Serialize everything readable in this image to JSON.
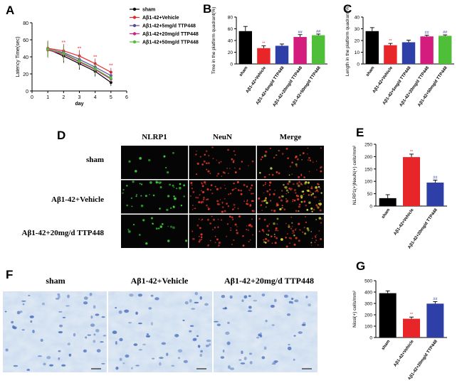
{
  "panels": {
    "A": "A",
    "B": "B",
    "C": "C",
    "D": "D",
    "E": "E",
    "F": "F",
    "G": "G"
  },
  "colors": {
    "sham": "#000000",
    "vehicle": "#e8262a",
    "ttp5": "#5b4a9c",
    "ttp20": "#d41c7e",
    "ttp50": "#4fbf3a",
    "blue_bar": "#2f3fa8"
  },
  "chart_data": [
    {
      "id": "A",
      "type": "line",
      "title": "",
      "xlabel": "day",
      "ylabel": "Latency Time(sec)",
      "xlim": [
        0,
        6
      ],
      "ylim": [
        0,
        80
      ],
      "xticks": [
        "0",
        "1",
        "2",
        "3",
        "4",
        "5",
        "6"
      ],
      "yticks": [
        "0",
        "20",
        "40",
        "60",
        "80"
      ],
      "x": [
        1,
        2,
        3,
        4,
        5
      ],
      "legend_position": "right",
      "series": [
        {
          "name": "sham",
          "color": "#000000",
          "values": [
            49,
            41,
            32,
            23,
            10
          ],
          "err": [
            9,
            8,
            7,
            6,
            4
          ]
        },
        {
          "name": "Aβ1-42+Vehicle",
          "color": "#e8262a",
          "values": [
            50,
            47,
            41,
            32,
            22
          ],
          "err": [
            9,
            8,
            7,
            6,
            5
          ]
        },
        {
          "name": "Aβ1-42+5mg/d TTP448",
          "color": "#5b4a9c",
          "values": [
            49,
            45,
            37,
            28,
            18
          ],
          "err": [
            9,
            8,
            7,
            6,
            5
          ]
        },
        {
          "name": "Aβ1-42+20mg/d TTP448",
          "color": "#d41c7e",
          "values": [
            48,
            43,
            34,
            25,
            14
          ],
          "err": [
            9,
            8,
            7,
            6,
            4
          ]
        },
        {
          "name": "Aβ1-42+50mg/d TTP448",
          "color": "#4fbf3a",
          "values": [
            49,
            44,
            35,
            26,
            15
          ],
          "err": [
            9,
            8,
            7,
            6,
            4
          ]
        }
      ],
      "annotations": [
        {
          "x": 2,
          "y": 55,
          "text": "**"
        },
        {
          "x": 3,
          "y": 48,
          "text": "**"
        },
        {
          "x": 4,
          "y": 38,
          "text": "**"
        },
        {
          "x": 5,
          "y": 28,
          "text": "**"
        }
      ]
    },
    {
      "id": "B",
      "type": "bar",
      "title": "",
      "ylabel": "Time in the platform quadrant(%)",
      "ylim": [
        0,
        80
      ],
      "yticks": [
        "0",
        "20",
        "40",
        "60",
        "80"
      ],
      "categories": [
        "sham",
        "Aβ1-42+Vehicle",
        "Aβ1-42+5mg/d TTP448",
        "Aβ1-42+20mg/d TTP448",
        "Aβ1-42+50mg/d TTP448"
      ],
      "values": [
        56,
        27,
        31,
        46,
        49
      ],
      "err": [
        8,
        4,
        3,
        4,
        2
      ],
      "colors": [
        "#000000",
        "#e8262a",
        "#2f3fa8",
        "#d41c7e",
        "#4fbf3a"
      ],
      "sig": [
        "",
        "**",
        "",
        "##",
        "##"
      ]
    },
    {
      "id": "C",
      "type": "bar",
      "title": "",
      "ylabel": "Length in the platform quadrant(%)",
      "ylim": [
        0,
        40
      ],
      "yticks": [
        "0",
        "10",
        "20",
        "30",
        "40"
      ],
      "categories": [
        "sham",
        "Aβ1-42+Vehicle",
        "Aβ1-42+5mg/d TTP448",
        "Aβ1-42+20mg/d TTP448",
        "Aβ1-42+50mg/d TTP448"
      ],
      "values": [
        28,
        16,
        18.5,
        23.5,
        24
      ],
      "err": [
        3,
        1.5,
        1.8,
        1,
        0.8
      ],
      "colors": [
        "#000000",
        "#e8262a",
        "#2f3fa8",
        "#d41c7e",
        "#4fbf3a"
      ],
      "sig": [
        "",
        "**",
        "",
        "##",
        "##"
      ]
    },
    {
      "id": "E",
      "type": "bar",
      "title": "",
      "ylabel": "NLRP1(+)NeuN(+) cells/mm²",
      "ylim": [
        0,
        250
      ],
      "yticks": [
        "0",
        "50",
        "100",
        "150",
        "200",
        "250"
      ],
      "categories": [
        "sham",
        "Aβ1-42+Vehicle",
        "Aβ1-42+20mg/d TTP448"
      ],
      "values": [
        32,
        198,
        95
      ],
      "err": [
        14,
        12,
        10
      ],
      "colors": [
        "#000000",
        "#e8262a",
        "#2f3fa8"
      ],
      "sig": [
        "",
        "**",
        "##"
      ]
    },
    {
      "id": "G",
      "type": "bar",
      "title": "",
      "ylabel": "Nissl(+) cells/mm²",
      "ylim": [
        0,
        500
      ],
      "yticks": [
        "0",
        "100",
        "200",
        "300",
        "400",
        "500"
      ],
      "categories": [
        "sham",
        "Aβ1-42+Vehicle",
        "Aβ1-42+20mg/d TTP448"
      ],
      "values": [
        390,
        165,
        298
      ],
      "err": [
        20,
        15,
        18
      ],
      "colors": [
        "#000000",
        "#e8262a",
        "#2f3fa8"
      ],
      "sig": [
        "",
        "**",
        "##"
      ]
    }
  ],
  "micrographs_D": {
    "columns": [
      "NLRP1",
      "NeuN",
      "Merge"
    ],
    "rows": [
      "sham",
      "Aβ1-42+Vehicle",
      "Aβ1-42+20mg/d TTP448"
    ]
  },
  "micrographs_F": {
    "columns": [
      "sham",
      "Aβ1-42+Vehicle",
      "Aβ1-42+20mg/d TTP448"
    ]
  }
}
